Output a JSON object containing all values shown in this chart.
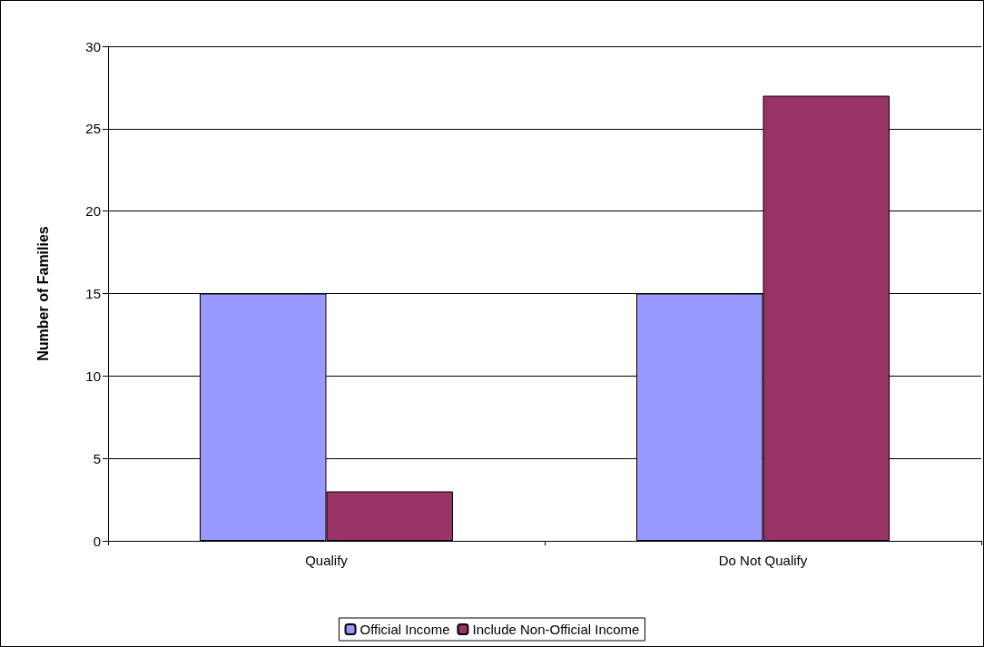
{
  "chart_data": {
    "type": "bar",
    "ylabel": "Number of Families",
    "categories": [
      "Qualify",
      "Do Not Qualify"
    ],
    "series": [
      {
        "name": "Official Income",
        "color": "#9999ff",
        "values": [
          15,
          15
        ]
      },
      {
        "name": "Include Non-Official Income",
        "color": "#993366",
        "values": [
          3,
          27
        ]
      }
    ],
    "ylim": [
      0,
      30
    ],
    "yticks": [
      0,
      5,
      10,
      15,
      20,
      25,
      30
    ],
    "grid": "y",
    "legend": "bottom"
  }
}
